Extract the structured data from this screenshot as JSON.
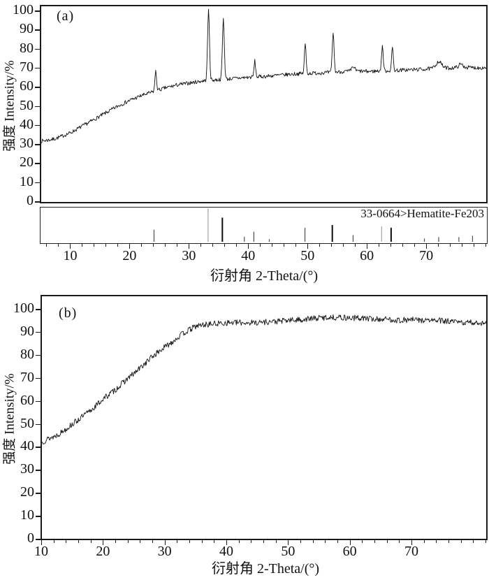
{
  "figure": {
    "panel_a": {
      "label": "(a)",
      "y_title": "强度 Intensity/%",
      "x_title": "衍射角 2-Theta/(°)",
      "reference_label": "33-0664>Hematite-Fe203"
    },
    "panel_b": {
      "label": "(b)",
      "y_title": "强度 Intensity/%",
      "x_title": "衍射角 2-Theta/(°)"
    },
    "colors": {
      "trace": "#111111",
      "axis": "#1a1a1a",
      "ref_light": "#a0a0a0",
      "ref_gray": "#4d4d4d",
      "ref_black": "#0d0d0d"
    }
  },
  "chart_data": [
    {
      "type": "line",
      "panel": "(a)",
      "title": "",
      "xlabel": "衍射角 2-Theta/(°)",
      "ylabel": "强度 Intensity/%",
      "xlim": [
        5,
        80
      ],
      "ylim": [
        0,
        100
      ],
      "x_ticks": [
        10,
        20,
        30,
        40,
        50,
        60,
        70
      ],
      "y_ticks": [
        0,
        10,
        20,
        30,
        40,
        50,
        60,
        70,
        80,
        90,
        100
      ],
      "x_minor_step": 2,
      "grid": false,
      "legend": null,
      "series_name": "XRD trace with hematite peaks",
      "baseline_points": [
        [
          5,
          31.5
        ],
        [
          6,
          32
        ],
        [
          7,
          32.5
        ],
        [
          8,
          33.5
        ],
        [
          10,
          36
        ],
        [
          12,
          39.5
        ],
        [
          14,
          43
        ],
        [
          16,
          46.5
        ],
        [
          18,
          50
        ],
        [
          20,
          53
        ],
        [
          22,
          55.5
        ],
        [
          24,
          57.5
        ],
        [
          26,
          59.5
        ],
        [
          28,
          61
        ],
        [
          30,
          62
        ],
        [
          32,
          63
        ],
        [
          34,
          63.5
        ],
        [
          36,
          64
        ],
        [
          38,
          64.5
        ],
        [
          40,
          65
        ],
        [
          42,
          65.3
        ],
        [
          44,
          65.8
        ],
        [
          46,
          66.3
        ],
        [
          48,
          66.8
        ],
        [
          50,
          67
        ],
        [
          52,
          67.3
        ],
        [
          54,
          67.5
        ],
        [
          56,
          68
        ],
        [
          58,
          68.3
        ],
        [
          60,
          68
        ],
        [
          62,
          68.3
        ],
        [
          64,
          68.4
        ],
        [
          66,
          68.8
        ],
        [
          68,
          69
        ],
        [
          70,
          69.3
        ],
        [
          72,
          70
        ],
        [
          74,
          69.8
        ],
        [
          76,
          70.3
        ],
        [
          78,
          70
        ],
        [
          80,
          70
        ]
      ],
      "peaks_x_top_sigma": [
        [
          24.3,
          68,
          0.14
        ],
        [
          33.2,
          100,
          0.16
        ],
        [
          35.7,
          95.5,
          0.16
        ],
        [
          41.0,
          73.5,
          0.13
        ],
        [
          49.5,
          82.5,
          0.14
        ],
        [
          54.2,
          88.5,
          0.15
        ],
        [
          57.6,
          70.5,
          0.25
        ],
        [
          62.5,
          81.5,
          0.14
        ],
        [
          64.2,
          80.5,
          0.14
        ],
        [
          72.0,
          73.3,
          0.45
        ],
        [
          75.7,
          71.8,
          0.35
        ]
      ],
      "noise_amplitude": 1.0,
      "reference_pattern": {
        "id_label": "33-0664>Hematite-Fe203",
        "peaks_2theta_height_shade": [
          [
            24.1,
            36,
            "gray"
          ],
          [
            33.2,
            100,
            "light"
          ],
          [
            35.6,
            72,
            "black"
          ],
          [
            39.3,
            15,
            "gray"
          ],
          [
            40.9,
            30,
            "gray"
          ],
          [
            43.5,
            8,
            "gray"
          ],
          [
            49.5,
            42,
            "gray"
          ],
          [
            54.1,
            50,
            "black"
          ],
          [
            57.6,
            20,
            "gray"
          ],
          [
            62.4,
            46,
            "light"
          ],
          [
            64.0,
            42,
            "black"
          ],
          [
            69.6,
            10,
            "gray"
          ],
          [
            72.0,
            14,
            "gray"
          ],
          [
            75.4,
            14,
            "gray"
          ],
          [
            77.7,
            18,
            "gray"
          ]
        ]
      }
    },
    {
      "type": "line",
      "panel": "(b)",
      "title": "",
      "xlabel": "衍射角 2-Theta/(°)",
      "ylabel": "强度 Intensity/%",
      "xlim": [
        10,
        82
      ],
      "ylim": [
        0,
        100
      ],
      "x_ticks": [
        10,
        20,
        30,
        40,
        50,
        60,
        70
      ],
      "y_ticks": [
        0,
        10,
        20,
        30,
        40,
        50,
        60,
        70,
        80,
        90,
        100
      ],
      "x_minor_step": 2,
      "grid": false,
      "legend": null,
      "series_name": "amorphous broad hump trace",
      "baseline_points": [
        [
          10,
          42
        ],
        [
          11,
          43.5
        ],
        [
          12,
          44.5
        ],
        [
          13,
          46
        ],
        [
          14,
          48
        ],
        [
          15,
          50
        ],
        [
          16,
          52
        ],
        [
          17,
          54
        ],
        [
          18,
          56
        ],
        [
          19,
          58.5
        ],
        [
          20,
          61
        ],
        [
          21,
          63
        ],
        [
          22,
          65
        ],
        [
          23,
          67.5
        ],
        [
          24,
          70
        ],
        [
          25,
          72
        ],
        [
          26,
          74.5
        ],
        [
          27,
          77
        ],
        [
          28,
          79.5
        ],
        [
          29,
          81.5
        ],
        [
          30,
          83.5
        ],
        [
          31,
          85.5
        ],
        [
          32,
          87.5
        ],
        [
          33,
          89.5
        ],
        [
          34,
          91
        ],
        [
          35,
          92.5
        ],
        [
          36,
          93
        ],
        [
          37,
          93.3
        ],
        [
          38,
          93.5
        ],
        [
          40,
          94
        ],
        [
          42,
          94
        ],
        [
          44,
          94
        ],
        [
          46,
          94.3
        ],
        [
          48,
          94.5
        ],
        [
          50,
          95
        ],
        [
          52,
          95.3
        ],
        [
          54,
          95.8
        ],
        [
          56,
          96.3
        ],
        [
          58,
          96.3
        ],
        [
          60,
          96
        ],
        [
          62,
          96
        ],
        [
          64,
          95.5
        ],
        [
          66,
          95.5
        ],
        [
          68,
          95
        ],
        [
          70,
          95.3
        ],
        [
          72,
          95
        ],
        [
          74,
          95
        ],
        [
          76,
          94.5
        ],
        [
          78,
          94
        ],
        [
          80,
          94
        ],
        [
          82,
          94
        ]
      ],
      "peaks_x_top_sigma": [],
      "noise_amplitude": 1.3,
      "reference_pattern": null
    }
  ]
}
